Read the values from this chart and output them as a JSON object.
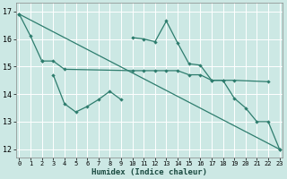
{
  "xlabel": "Humidex (Indice chaleur)",
  "bg_color": "#cce8e4",
  "grid_color": "#ffffff",
  "line_color": "#2e7d6e",
  "ylim": [
    11.7,
    17.3
  ],
  "xlim": [
    -0.3,
    23.3
  ],
  "yticks": [
    12,
    13,
    14,
    15,
    16,
    17
  ],
  "xticks": [
    0,
    1,
    2,
    3,
    4,
    5,
    6,
    7,
    8,
    9,
    10,
    11,
    12,
    13,
    14,
    15,
    16,
    17,
    18,
    19,
    20,
    21,
    22,
    23
  ],
  "line_diagonal": {
    "x": [
      0,
      23
    ],
    "y": [
      16.9,
      12.0
    ]
  },
  "line_upper": {
    "x": [
      2,
      3,
      4,
      10,
      11,
      12,
      13,
      14,
      15,
      16,
      17,
      18,
      19,
      22
    ],
    "y": [
      15.2,
      15.2,
      14.9,
      14.85,
      14.85,
      14.85,
      14.85,
      14.85,
      14.7,
      14.7,
      14.5,
      14.5,
      14.5,
      14.45
    ]
  },
  "line_left_jagged": {
    "x": [
      3,
      4,
      5,
      6,
      7,
      8,
      9
    ],
    "y": [
      14.7,
      13.65,
      13.35,
      13.55,
      13.8,
      14.1,
      13.8
    ]
  },
  "line_right_jagged": {
    "x": [
      10,
      11,
      12,
      13,
      14,
      15,
      16,
      17,
      18,
      19,
      20,
      21,
      22,
      23
    ],
    "y": [
      16.05,
      16.0,
      15.9,
      16.65,
      15.85,
      15.1,
      15.05,
      14.5,
      14.5,
      13.85,
      13.5,
      13.0,
      13.0,
      12.0
    ]
  },
  "line_top": {
    "x": [
      0,
      1,
      2
    ],
    "y": [
      16.9,
      16.1,
      15.2
    ]
  }
}
